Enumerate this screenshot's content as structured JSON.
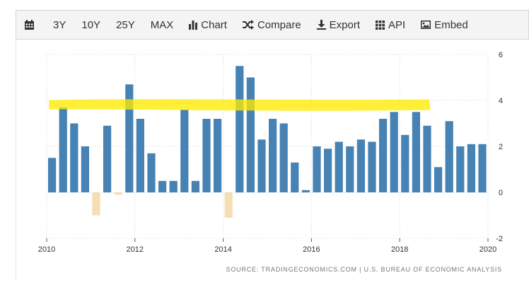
{
  "toolbar": {
    "calendar_icon": "calendar-icon",
    "range_3y": "3Y",
    "range_10y": "10Y",
    "range_25y": "25Y",
    "range_max": "MAX",
    "chart_label": "Chart",
    "chart_icon": "bar-chart-icon",
    "compare_label": "Compare",
    "compare_icon": "shuffle-icon",
    "export_label": "Export",
    "export_icon": "download-icon",
    "api_label": "API",
    "api_icon": "grid-icon",
    "embed_label": "Embed",
    "embed_icon": "image-icon"
  },
  "colors": {
    "positive_bar": "#4682b4",
    "negative_bar": "#f5deb3",
    "highlight": "#ffeb00",
    "grid": "#d8d8d8",
    "axis_text": "#333333",
    "source_text": "#777777"
  },
  "chart_data": {
    "type": "bar",
    "title": "",
    "xlabel": "",
    "ylabel": "",
    "x_ticks": [
      "2010",
      "2012",
      "2014",
      "2016",
      "2018",
      "2020"
    ],
    "y_ticks": [
      "6",
      "4",
      "2",
      "0",
      "-2"
    ],
    "ylim": [
      -2,
      6
    ],
    "xlim": [
      2010.0,
      2020.0
    ],
    "values": [
      1.5,
      3.7,
      3.0,
      2.0,
      -1.0,
      2.9,
      -0.1,
      4.7,
      3.2,
      1.7,
      0.5,
      0.5,
      3.6,
      0.5,
      3.2,
      3.2,
      -1.1,
      5.5,
      5.0,
      2.3,
      3.2,
      3.0,
      1.3,
      0.1,
      2.0,
      1.9,
      2.2,
      2.0,
      2.3,
      2.2,
      3.2,
      3.5,
      2.5,
      3.5,
      2.9,
      1.1,
      3.1,
      2.0,
      2.1,
      2.1
    ],
    "period_start": 2010.0,
    "period_step": 0.25,
    "highlight_annotation": {
      "value": 3.8,
      "x_start": 2010.1,
      "x_end": 2018.7
    },
    "source": "SOURCE: TRADINGECONOMICS.COM | U.S. BUREAU OF ECONOMIC ANALYSIS"
  }
}
